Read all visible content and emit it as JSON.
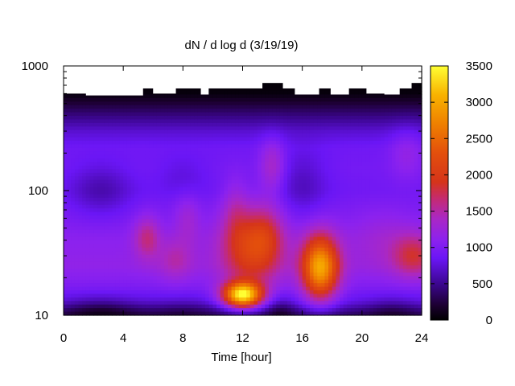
{
  "chart_data": {
    "type": "heatmap",
    "title": "dN / d log d (3/19/19)",
    "xlabel": "Time [hour]",
    "ylabel": "",
    "xlim": [
      0,
      24
    ],
    "ylim": [
      10,
      1000
    ],
    "y_scale": "log",
    "x_ticks": [
      0,
      4,
      8,
      12,
      16,
      20,
      24
    ],
    "y_ticks": [
      {
        "value": 10,
        "label": "10"
      },
      {
        "value": 100,
        "label": "100"
      },
      {
        "value": 1000,
        "label": "1000"
      }
    ],
    "colorbar": {
      "min": 0,
      "max": 3500,
      "ticks": [
        0,
        500,
        1000,
        1500,
        2000,
        2500,
        3000,
        3500
      ],
      "colormap": "black-purple-red-orange-yellow"
    },
    "colormap_stops": [
      {
        "v": 0,
        "color": "#000000"
      },
      {
        "v": 200,
        "color": "#1c0030"
      },
      {
        "v": 500,
        "color": "#3c0690"
      },
      {
        "v": 850,
        "color": "#6a16f5"
      },
      {
        "v": 1100,
        "color": "#8c22ee"
      },
      {
        "v": 1400,
        "color": "#aa28c4"
      },
      {
        "v": 1650,
        "color": "#c32a78"
      },
      {
        "v": 1900,
        "color": "#d5341a"
      },
      {
        "v": 2300,
        "color": "#e34f0c"
      },
      {
        "v": 2700,
        "color": "#ef8000"
      },
      {
        "v": 3100,
        "color": "#f8b200"
      },
      {
        "v": 3500,
        "color": "#ffff33"
      }
    ],
    "empty_region_above": [
      {
        "x": [
          0,
          1.5
        ],
        "y": 600
      },
      {
        "x": [
          1.5,
          5.3
        ],
        "y": 580
      },
      {
        "x": [
          5.3,
          6.0
        ],
        "y": 660
      },
      {
        "x": [
          6.0,
          7.5
        ],
        "y": 600
      },
      {
        "x": [
          7.5,
          9.2
        ],
        "y": 660
      },
      {
        "x": [
          9.2,
          9.7
        ],
        "y": 590
      },
      {
        "x": [
          9.7,
          13.3
        ],
        "y": 660
      },
      {
        "x": [
          13.3,
          14.7
        ],
        "y": 730
      },
      {
        "x": [
          14.7,
          15.5
        ],
        "y": 660
      },
      {
        "x": [
          15.5,
          17.1
        ],
        "y": 590
      },
      {
        "x": [
          17.1,
          17.9
        ],
        "y": 660
      },
      {
        "x": [
          17.9,
          19.1
        ],
        "y": 590
      },
      {
        "x": [
          19.1,
          20.3
        ],
        "y": 660
      },
      {
        "x": [
          20.3,
          21.5
        ],
        "y": 600
      },
      {
        "x": [
          21.5,
          22.5
        ],
        "y": 590
      },
      {
        "x": [
          22.5,
          23.3
        ],
        "y": 660
      },
      {
        "x": [
          23.3,
          24
        ],
        "y": 730
      }
    ],
    "background_profile": [
      {
        "d": 10,
        "v": 350
      },
      {
        "d": 11,
        "v": 500
      },
      {
        "d": 13,
        "v": 800
      },
      {
        "d": 17,
        "v": 1000
      },
      {
        "d": 25,
        "v": 1150
      },
      {
        "d": 40,
        "v": 1100
      },
      {
        "d": 60,
        "v": 1000
      },
      {
        "d": 100,
        "v": 900
      },
      {
        "d": 150,
        "v": 930
      },
      {
        "d": 220,
        "v": 900
      },
      {
        "d": 300,
        "v": 720
      },
      {
        "d": 400,
        "v": 450
      },
      {
        "d": 500,
        "v": 220
      },
      {
        "d": 600,
        "v": 50
      },
      {
        "d": 1000,
        "v": 0
      }
    ],
    "features": [
      {
        "t": 12.0,
        "d": 14.5,
        "sigma_t": 0.9,
        "sigma_logd": 0.07,
        "amp": 2500
      },
      {
        "t": 12.6,
        "d": 35,
        "sigma_t": 1.4,
        "sigma_logd": 0.22,
        "amp": 1000
      },
      {
        "t": 13.6,
        "d": 45,
        "sigma_t": 0.8,
        "sigma_logd": 0.16,
        "amp": 350
      },
      {
        "t": 14.0,
        "d": 160,
        "sigma_t": 0.6,
        "sigma_logd": 0.15,
        "amp": 450
      },
      {
        "t": 11.5,
        "d": 70,
        "sigma_t": 0.6,
        "sigma_logd": 0.18,
        "amp": 300
      },
      {
        "t": 17.2,
        "d": 24,
        "sigma_t": 0.85,
        "sigma_logd": 0.18,
        "amp": 1900
      },
      {
        "t": 5.6,
        "d": 42,
        "sigma_t": 0.6,
        "sigma_logd": 0.12,
        "amp": 550
      },
      {
        "t": 7.5,
        "d": 28,
        "sigma_t": 0.8,
        "sigma_logd": 0.12,
        "amp": 350
      },
      {
        "t": 8.3,
        "d": 60,
        "sigma_t": 0.6,
        "sigma_logd": 0.14,
        "amp": 280
      },
      {
        "t": 23.5,
        "d": 30,
        "sigma_t": 1.0,
        "sigma_logd": 0.12,
        "amp": 650
      },
      {
        "t": 21.5,
        "d": 40,
        "sigma_t": 1.6,
        "sigma_logd": 0.18,
        "amp": 200
      },
      {
        "t": 23.0,
        "d": 200,
        "sigma_t": 0.8,
        "sigma_logd": 0.15,
        "amp": 250
      },
      {
        "t": 2.5,
        "d": 100,
        "sigma_t": 1.5,
        "sigma_logd": 0.15,
        "amp": -300
      },
      {
        "t": 16.0,
        "d": 110,
        "sigma_t": 1.2,
        "sigma_logd": 0.2,
        "amp": -250
      },
      {
        "t": 8.0,
        "d": 130,
        "sigma_t": 1.2,
        "sigma_logd": 0.12,
        "amp": -150
      },
      {
        "t": 2.5,
        "d": 11,
        "sigma_t": 1.8,
        "sigma_logd": 0.08,
        "amp": -300
      },
      {
        "t": 8.0,
        "d": 11,
        "sigma_t": 1.5,
        "sigma_logd": 0.08,
        "amp": -150
      },
      {
        "t": 14.5,
        "d": 11,
        "sigma_t": 0.7,
        "sigma_logd": 0.08,
        "amp": -250
      },
      {
        "t": 22.0,
        "d": 11,
        "sigma_t": 1.2,
        "sigma_logd": 0.08,
        "amp": -200
      }
    ]
  }
}
